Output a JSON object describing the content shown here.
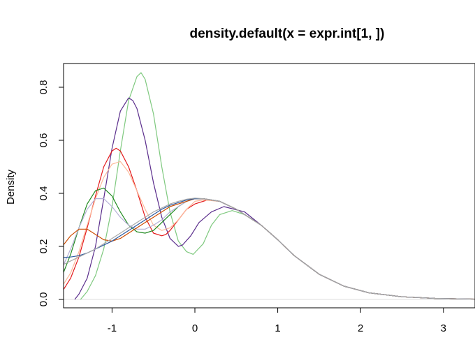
{
  "chart_data": {
    "type": "line",
    "title": "density.default(x = expr.int[1, ])",
    "xlabel": "",
    "ylabel": "Density",
    "xlim": [
      -1.6,
      3.4
    ],
    "ylim": [
      0,
      0.88
    ],
    "xticks": [
      -1,
      0,
      1,
      2,
      3
    ],
    "yticks": [
      0.0,
      0.2,
      0.4,
      0.6,
      0.8
    ],
    "xtick_labels": [
      "-1",
      "0",
      "1",
      "2",
      "3"
    ],
    "ytick_labels": [
      "0.0",
      "0.2",
      "0.4",
      "0.6",
      "0.8"
    ],
    "zero_line_color": "#dddddd",
    "grid": false,
    "series": [
      {
        "color": "#7fc97f",
        "x": [
          -1.38,
          -1.3,
          -1.2,
          -1.1,
          -1.0,
          -0.9,
          -0.8,
          -0.7,
          -0.65,
          -0.6,
          -0.5,
          -0.4,
          -0.3,
          -0.2,
          -0.1,
          -0.02,
          0.1,
          0.2,
          0.3,
          0.45,
          0.6,
          0.8,
          1.0,
          1.2,
          1.5,
          1.8,
          2.1,
          2.5,
          2.9,
          3.4
        ],
        "y": [
          0.0,
          0.03,
          0.09,
          0.19,
          0.35,
          0.56,
          0.75,
          0.84,
          0.855,
          0.83,
          0.7,
          0.5,
          0.33,
          0.22,
          0.18,
          0.17,
          0.21,
          0.28,
          0.32,
          0.335,
          0.32,
          0.28,
          0.225,
          0.165,
          0.095,
          0.05,
          0.025,
          0.01,
          0.004,
          0.001
        ]
      },
      {
        "color": "#5a2d8c",
        "x": [
          -1.45,
          -1.4,
          -1.3,
          -1.2,
          -1.1,
          -1.0,
          -0.9,
          -0.8,
          -0.75,
          -0.7,
          -0.6,
          -0.5,
          -0.4,
          -0.3,
          -0.2,
          -0.15,
          -0.05,
          0.05,
          0.2,
          0.35,
          0.6,
          0.8,
          1.0,
          1.2,
          1.5,
          1.8,
          2.1,
          2.5,
          2.9,
          3.4
        ],
        "y": [
          0.0,
          0.02,
          0.08,
          0.2,
          0.38,
          0.57,
          0.71,
          0.76,
          0.75,
          0.72,
          0.6,
          0.44,
          0.31,
          0.23,
          0.2,
          0.205,
          0.24,
          0.29,
          0.33,
          0.35,
          0.33,
          0.28,
          0.225,
          0.165,
          0.095,
          0.05,
          0.025,
          0.01,
          0.004,
          0.001
        ]
      },
      {
        "color": "#e41a1c",
        "x": [
          -1.6,
          -1.5,
          -1.4,
          -1.3,
          -1.2,
          -1.1,
          -1.0,
          -0.95,
          -0.9,
          -0.8,
          -0.7,
          -0.6,
          -0.5,
          -0.4,
          -0.35,
          -0.3,
          -0.2,
          -0.1,
          0.0,
          0.15,
          0.3,
          0.5,
          0.8,
          1.0,
          1.2,
          1.5,
          1.8,
          2.1,
          2.5,
          2.9,
          3.4
        ],
        "y": [
          0.03,
          0.08,
          0.16,
          0.27,
          0.39,
          0.5,
          0.56,
          0.57,
          0.56,
          0.5,
          0.41,
          0.31,
          0.25,
          0.24,
          0.245,
          0.26,
          0.3,
          0.34,
          0.36,
          0.375,
          0.37,
          0.34,
          0.28,
          0.225,
          0.165,
          0.095,
          0.05,
          0.025,
          0.01,
          0.004,
          0.001
        ]
      },
      {
        "color": "#fdb99a",
        "x": [
          -1.6,
          -1.5,
          -1.4,
          -1.3,
          -1.2,
          -1.1,
          -1.0,
          -0.9,
          -0.8,
          -0.7,
          -0.6,
          -0.5,
          -0.4,
          -0.3,
          -0.2,
          -0.1,
          0.0,
          0.1,
          0.3,
          0.5,
          0.8,
          1.0,
          1.2,
          1.5,
          1.8,
          2.1,
          2.5,
          2.9,
          3.4
        ],
        "y": [
          0.05,
          0.1,
          0.18,
          0.28,
          0.38,
          0.46,
          0.51,
          0.52,
          0.48,
          0.41,
          0.34,
          0.28,
          0.26,
          0.27,
          0.3,
          0.34,
          0.37,
          0.375,
          0.37,
          0.34,
          0.28,
          0.225,
          0.165,
          0.095,
          0.05,
          0.025,
          0.01,
          0.004,
          0.001
        ]
      },
      {
        "color": "#228b22",
        "x": [
          -1.6,
          -1.5,
          -1.4,
          -1.3,
          -1.2,
          -1.1,
          -1.0,
          -0.9,
          -0.8,
          -0.7,
          -0.6,
          -0.5,
          -0.4,
          -0.3,
          -0.2,
          -0.1,
          0.0,
          0.1,
          0.3,
          0.5,
          0.8,
          1.0,
          1.2,
          1.5,
          1.8,
          2.1,
          2.5,
          2.9,
          3.4
        ],
        "y": [
          0.09,
          0.17,
          0.27,
          0.36,
          0.41,
          0.42,
          0.39,
          0.33,
          0.28,
          0.255,
          0.25,
          0.26,
          0.29,
          0.32,
          0.35,
          0.37,
          0.38,
          0.38,
          0.37,
          0.34,
          0.28,
          0.225,
          0.165,
          0.095,
          0.05,
          0.025,
          0.01,
          0.004,
          0.001
        ]
      },
      {
        "color": "#b5b0d6",
        "x": [
          -1.6,
          -1.5,
          -1.4,
          -1.3,
          -1.2,
          -1.1,
          -1.0,
          -0.9,
          -0.8,
          -0.7,
          -0.6,
          -0.5,
          -0.4,
          -0.3,
          -0.2,
          -0.1,
          0.0,
          0.1,
          0.3,
          0.5,
          0.8,
          1.0,
          1.2,
          1.5,
          1.8,
          2.1,
          2.5,
          2.9,
          3.4
        ],
        "y": [
          0.12,
          0.19,
          0.27,
          0.34,
          0.38,
          0.38,
          0.35,
          0.31,
          0.28,
          0.265,
          0.265,
          0.28,
          0.3,
          0.33,
          0.35,
          0.37,
          0.38,
          0.38,
          0.37,
          0.34,
          0.28,
          0.225,
          0.165,
          0.095,
          0.05,
          0.025,
          0.01,
          0.004,
          0.001
        ]
      },
      {
        "color": "#cc4c02",
        "x": [
          -1.6,
          -1.5,
          -1.4,
          -1.3,
          -1.2,
          -1.1,
          -1.0,
          -0.9,
          -0.8,
          -0.7,
          -0.6,
          -0.5,
          -0.4,
          -0.3,
          -0.2,
          -0.1,
          0.0,
          0.1,
          0.3,
          0.5,
          0.8,
          1.0,
          1.2,
          1.5,
          1.8,
          2.1,
          2.5,
          2.9,
          3.4
        ],
        "y": [
          0.2,
          0.24,
          0.265,
          0.265,
          0.245,
          0.225,
          0.22,
          0.23,
          0.25,
          0.27,
          0.29,
          0.31,
          0.33,
          0.35,
          0.36,
          0.37,
          0.38,
          0.38,
          0.37,
          0.34,
          0.28,
          0.225,
          0.165,
          0.095,
          0.05,
          0.025,
          0.01,
          0.004,
          0.001
        ]
      },
      {
        "color": "#2c5aa0",
        "x": [
          -1.6,
          -1.5,
          -1.4,
          -1.3,
          -1.2,
          -1.1,
          -1.0,
          -0.9,
          -0.8,
          -0.7,
          -0.6,
          -0.5,
          -0.4,
          -0.3,
          -0.2,
          -0.1,
          0.0,
          0.1,
          0.3,
          0.5,
          0.8,
          1.0,
          1.2,
          1.5,
          1.8,
          2.1,
          2.5,
          2.9,
          3.4
        ],
        "y": [
          0.158,
          0.16,
          0.165,
          0.175,
          0.19,
          0.205,
          0.22,
          0.24,
          0.26,
          0.28,
          0.3,
          0.32,
          0.34,
          0.355,
          0.365,
          0.375,
          0.38,
          0.38,
          0.37,
          0.34,
          0.28,
          0.225,
          0.165,
          0.095,
          0.05,
          0.025,
          0.01,
          0.004,
          0.001
        ]
      },
      {
        "color": "#a9a9a9",
        "x": [
          -1.6,
          -1.5,
          -1.4,
          -1.3,
          -1.2,
          -1.1,
          -1.0,
          -0.9,
          -0.8,
          -0.7,
          -0.6,
          -0.5,
          -0.4,
          -0.3,
          -0.2,
          -0.1,
          0.0,
          0.1,
          0.3,
          0.5,
          0.8,
          1.0,
          1.2,
          1.5,
          1.8,
          2.1,
          2.5,
          2.9,
          3.4
        ],
        "y": [
          0.13,
          0.145,
          0.16,
          0.175,
          0.19,
          0.21,
          0.23,
          0.25,
          0.27,
          0.29,
          0.31,
          0.33,
          0.345,
          0.36,
          0.37,
          0.378,
          0.382,
          0.38,
          0.37,
          0.34,
          0.28,
          0.225,
          0.165,
          0.095,
          0.05,
          0.025,
          0.01,
          0.004,
          0.001
        ]
      }
    ]
  }
}
